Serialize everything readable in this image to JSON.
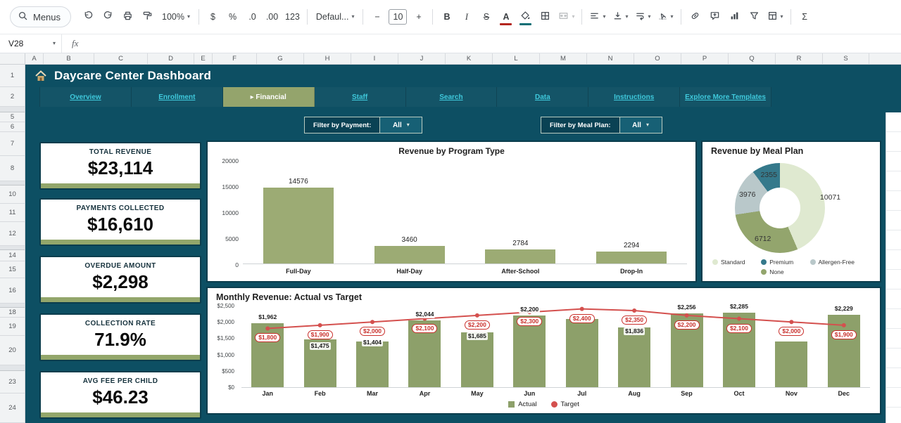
{
  "toolbar": {
    "menus_label": "Menus",
    "items": [
      {
        "name": "undo",
        "icon": "undo"
      },
      {
        "name": "redo",
        "icon": "redo"
      },
      {
        "name": "print",
        "icon": "print"
      },
      {
        "name": "paint-format",
        "icon": "roller"
      },
      {
        "name": "zoom",
        "label": "100%",
        "caret": true,
        "wide": true
      },
      {
        "sep": true
      },
      {
        "name": "format-currency",
        "label": "$"
      },
      {
        "name": "format-percent",
        "label": "%"
      },
      {
        "name": "decrease-decimal-places",
        "label": ".0"
      },
      {
        "name": "increase-decimal-places",
        "label": ".00"
      },
      {
        "name": "more-formats",
        "label": "123"
      },
      {
        "sep": true
      },
      {
        "name": "font-name",
        "label": "Defaul...",
        "caret": true,
        "wide": true
      },
      {
        "sep": true
      },
      {
        "name": "decrease-font-size",
        "label": "−"
      },
      {
        "name": "font-size",
        "label": "10",
        "boxed": true
      },
      {
        "name": "increase-font-size",
        "label": "+"
      },
      {
        "sep": true
      },
      {
        "name": "bold",
        "label": "B",
        "cls": "tb-bold"
      },
      {
        "name": "italic",
        "label": "I",
        "cls": "tb-italic"
      },
      {
        "name": "strikethrough",
        "label": "S",
        "cls": "tb-strike"
      },
      {
        "name": "text-color",
        "label": "A",
        "cls": "tb-bold",
        "underbar": "#b3261e"
      },
      {
        "name": "fill-color",
        "icon": "bucket",
        "underbar": "#0b6e75"
      },
      {
        "name": "borders",
        "icon": "borders"
      },
      {
        "name": "merge-cells",
        "icon": "merge",
        "caret": true,
        "disabled": true
      },
      {
        "sep": true
      },
      {
        "name": "horizontal-align",
        "icon": "align",
        "caret": true
      },
      {
        "name": "vertical-align",
        "icon": "valign",
        "caret": true
      },
      {
        "name": "text-wrapping",
        "icon": "wrap",
        "caret": true
      },
      {
        "name": "text-rotation",
        "icon": "rotate",
        "caret": true
      },
      {
        "sep": true
      },
      {
        "name": "insert-link",
        "icon": "link"
      },
      {
        "name": "insert-comment",
        "icon": "comment"
      },
      {
        "name": "insert-chart",
        "icon": "chart"
      },
      {
        "name": "create-filter",
        "icon": "funnel"
      },
      {
        "name": "sheet-views",
        "icon": "views",
        "caret": true
      },
      {
        "sep": true
      },
      {
        "name": "functions",
        "label": "Σ"
      }
    ]
  },
  "formula_bar": {
    "cell_ref": "V28",
    "fx": "fx"
  },
  "grid": {
    "col_headers": [
      "A",
      "B",
      "C",
      "D",
      "E",
      "F",
      "G",
      "H",
      "I",
      "J",
      "K",
      "L",
      "M",
      "N",
      "O",
      "P",
      "Q",
      "R",
      "S"
    ],
    "row_headers": [
      "1",
      "2",
      "",
      "5",
      "6",
      "7",
      "8",
      "",
      "10",
      "11",
      "12",
      "",
      "14",
      "15",
      "16",
      "",
      "18",
      "19",
      "20",
      "",
      "23",
      "24"
    ]
  },
  "dashboard": {
    "title_icon": "house-icon",
    "title": "Daycare Center Dashboard",
    "nav_tabs": [
      {
        "label": "Overview",
        "active": false
      },
      {
        "label": "Enrollment",
        "active": false
      },
      {
        "label": "▸ Financial",
        "active": true
      },
      {
        "label": "Staff",
        "active": false
      },
      {
        "label": "Search",
        "active": false
      },
      {
        "label": "Data",
        "active": false
      },
      {
        "label": "Instructions",
        "active": false
      },
      {
        "label": "Explore More Templates",
        "active": false
      }
    ],
    "filters": [
      {
        "label": "Filter by Payment:",
        "value": "All"
      },
      {
        "label": "Filter by Meal Plan:",
        "value": "All"
      }
    ],
    "kpis": [
      {
        "label": "TOTAL REVENUE",
        "value": "$23,114"
      },
      {
        "label": "PAYMENTS COLLECTED",
        "value": "$16,610"
      },
      {
        "label": "OVERDUE AMOUNT",
        "value": "$2,298"
      },
      {
        "label": "COLLECTION RATE",
        "value": "71.9%"
      },
      {
        "label": "AVG FEE PER CHILD",
        "value": "$46.23"
      }
    ]
  },
  "chart_data": [
    {
      "type": "bar",
      "title": "Revenue by Program Type",
      "categories": [
        "Full-Day",
        "Half-Day",
        "After-School",
        "Drop-In"
      ],
      "values": [
        14576,
        3460,
        2784,
        2294
      ],
      "ylim": [
        0,
        20000
      ],
      "yticks": [
        0,
        5000,
        10000,
        15000,
        20000
      ],
      "ytick_labels": [
        "0",
        "5000",
        "10000",
        "15000",
        "20000"
      ],
      "bar_color": "#9cab74",
      "grid": false,
      "xlabel": "",
      "ylabel": ""
    },
    {
      "type": "pie",
      "title": "Revenue by Meal Plan",
      "labels": [
        "Standard",
        "None",
        "Allergen-Free",
        "Premium"
      ],
      "values": [
        10071,
        6712,
        3976,
        2355
      ],
      "colors": [
        "#dfe9d0",
        "#93a56d",
        "#b9c8ca",
        "#35798b"
      ],
      "legend": [
        {
          "label": "Standard",
          "color": "#dfe9d0"
        },
        {
          "label": "Premium",
          "color": "#35798b"
        },
        {
          "label": "Allergen-Free",
          "color": "#b9c8ca"
        },
        {
          "label": "None",
          "color": "#93a56d"
        }
      ]
    },
    {
      "type": "bar",
      "title": "Monthly Revenue: Actual vs Target",
      "categories": [
        "Jan",
        "Feb",
        "Mar",
        "Apr",
        "May",
        "Jun",
        "Jul",
        "Aug",
        "Sep",
        "Oct",
        "Nov",
        "Dec"
      ],
      "series": [
        {
          "name": "Actual",
          "type": "bar",
          "color": "#8da06a",
          "values": [
            1962,
            1475,
            1404,
            2044,
            1685,
            2200,
            2100,
            1836,
            2256,
            2285,
            1400,
            2229
          ],
          "labels": [
            "$1,962",
            "$1,475",
            "$1,404",
            "$2,044",
            "$1,685",
            "$2,200",
            null,
            "$1,836",
            "$2,256",
            "$2,285",
            null,
            "$2,229"
          ]
        },
        {
          "name": "Target",
          "type": "line",
          "color": "#d4504e",
          "values": [
            1800,
            1900,
            2000,
            2100,
            2200,
            2300,
            2400,
            2350,
            2200,
            2100,
            2000,
            1900
          ],
          "labels": [
            "$1,800",
            "$1,900",
            "$2,000",
            "$2,100",
            "$2,200",
            "$2,300",
            "$2,400",
            "$2,350",
            "$2,200",
            "$2,100",
            "$2,000",
            "$1,900"
          ]
        }
      ],
      "ylim": [
        0,
        2500
      ],
      "yticks": [
        0,
        500,
        1000,
        1500,
        2000,
        2500
      ],
      "ytick_labels": [
        "$0",
        "$500",
        "$1,000",
        "$1,500",
        "$2,000",
        "$2,500"
      ],
      "legend_position": "bottom"
    }
  ]
}
